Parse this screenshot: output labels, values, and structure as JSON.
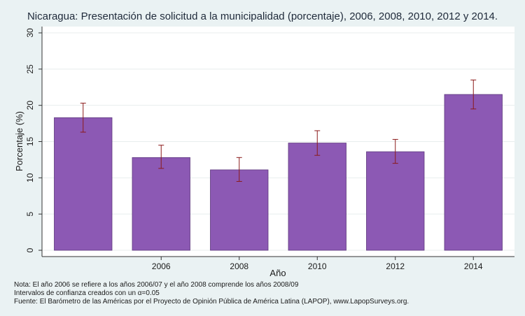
{
  "chart_data": {
    "type": "bar",
    "title": "Nicaragua: Presentación de solicitud a la municipalidad (porcentaje), 2006, 2008, 2010, 2012 y 2014.",
    "xlabel": "Año",
    "ylabel": "Porcentaje (%)",
    "ylim": [
      0,
      30
    ],
    "yticks": [
      0,
      5,
      10,
      15,
      20,
      25,
      30
    ],
    "categories": [
      "",
      "2006",
      "2008",
      "2010",
      "2012",
      "2014"
    ],
    "values": [
      18.3,
      12.8,
      11.1,
      14.8,
      13.6,
      21.5
    ],
    "error_low": [
      16.3,
      11.3,
      9.5,
      13.1,
      12.0,
      19.5
    ],
    "error_high": [
      20.3,
      14.5,
      12.8,
      16.5,
      15.3,
      23.5
    ],
    "grid": true,
    "bar_color": "#8c59b4",
    "error_color": "#8b1a1a"
  },
  "notes": [
    "Nota: El año 2006 se refiere a los años 2006/07 y el año 2008 comprende los años 2008/09",
    "Intervalos de confianza creados con un α=0.05",
    "Fuente: El Barómetro de las Américas por el Proyecto de Opinión Pública de América Latina (LAPOP), www.LapopSurveys.org."
  ]
}
